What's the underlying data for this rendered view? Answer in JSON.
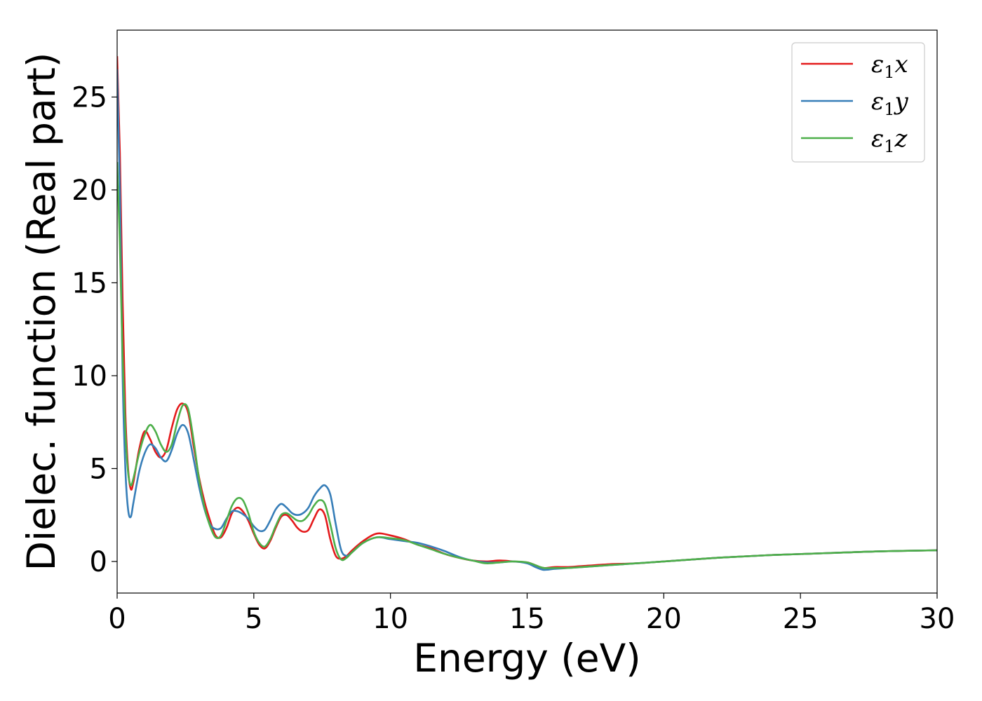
{
  "chart_data": {
    "type": "line",
    "xlabel": "Energy (eV)",
    "ylabel": "Dielec. function (Real part)",
    "xlim": [
      0,
      30
    ],
    "ylim": [
      -1.7,
      28.6
    ],
    "xticks": [
      "0",
      "5",
      "10",
      "15",
      "20",
      "25",
      "30"
    ],
    "yticks": [
      "0",
      "5",
      "10",
      "15",
      "20",
      "25"
    ],
    "grid": false,
    "legend_position": "top-right",
    "series": [
      {
        "name": "ε1x",
        "legend_main": "ε",
        "legend_sub": "1",
        "legend_tail": "x",
        "color": "#e41a1c",
        "x": [
          0,
          0.1,
          0.2,
          0.3,
          0.4,
          0.5,
          0.6,
          0.8,
          1.0,
          1.2,
          1.4,
          1.6,
          1.8,
          2.0,
          2.2,
          2.4,
          2.6,
          2.8,
          3.0,
          3.2,
          3.4,
          3.6,
          3.8,
          4.0,
          4.2,
          4.4,
          4.6,
          4.8,
          5.0,
          5.2,
          5.4,
          5.6,
          5.8,
          6.0,
          6.2,
          6.4,
          6.6,
          6.8,
          7.0,
          7.2,
          7.4,
          7.6,
          7.8,
          8.0,
          8.2,
          8.4,
          8.6,
          9.0,
          9.5,
          10.0,
          10.5,
          11.0,
          11.5,
          12.0,
          12.5,
          13.0,
          13.5,
          14.0,
          14.5,
          15.0,
          15.3,
          15.6,
          16.0,
          16.5,
          17.0,
          18.0,
          19.0,
          20.0,
          22.0,
          24.0,
          26.0,
          28.0,
          30.0
        ],
        "y": [
          27.2,
          22.0,
          14.0,
          8.0,
          5.0,
          3.9,
          4.3,
          6.0,
          7.0,
          6.6,
          5.9,
          5.6,
          6.0,
          7.2,
          8.2,
          8.5,
          8.0,
          6.2,
          4.5,
          3.2,
          2.2,
          1.4,
          1.3,
          1.8,
          2.6,
          2.9,
          2.7,
          2.2,
          1.5,
          0.9,
          0.7,
          1.1,
          1.8,
          2.4,
          2.5,
          2.2,
          1.8,
          1.6,
          1.7,
          2.3,
          2.8,
          2.5,
          1.2,
          0.3,
          0.15,
          0.3,
          0.6,
          1.1,
          1.5,
          1.4,
          1.2,
          0.9,
          0.7,
          0.4,
          0.2,
          0.05,
          0.0,
          0.05,
          0.0,
          -0.05,
          -0.2,
          -0.35,
          -0.3,
          -0.3,
          -0.25,
          -0.15,
          -0.1,
          0.0,
          0.2,
          0.35,
          0.45,
          0.55,
          0.6
        ]
      },
      {
        "name": "ε1y",
        "legend_main": "ε",
        "legend_sub": "1",
        "legend_tail": "y",
        "color": "#377eb8",
        "x": [
          0,
          0.1,
          0.2,
          0.3,
          0.4,
          0.5,
          0.6,
          0.8,
          1.0,
          1.2,
          1.4,
          1.6,
          1.8,
          2.0,
          2.2,
          2.4,
          2.6,
          2.8,
          3.0,
          3.2,
          3.4,
          3.6,
          3.8,
          4.0,
          4.2,
          4.4,
          4.6,
          4.8,
          5.0,
          5.2,
          5.4,
          5.6,
          5.8,
          6.0,
          6.2,
          6.4,
          6.6,
          6.8,
          7.0,
          7.2,
          7.4,
          7.6,
          7.8,
          8.0,
          8.2,
          8.4,
          8.6,
          9.0,
          9.5,
          10.0,
          10.5,
          11.0,
          11.5,
          12.0,
          12.5,
          13.0,
          13.5,
          14.0,
          14.5,
          15.0,
          15.3,
          15.6,
          16.0,
          16.5,
          17.0,
          18.0,
          19.0,
          20.0,
          22.0,
          24.0,
          26.0,
          28.0,
          30.0
        ],
        "y": [
          26.5,
          20.0,
          10.0,
          5.0,
          2.8,
          2.4,
          3.2,
          4.8,
          5.8,
          6.3,
          6.1,
          5.6,
          5.4,
          6.0,
          6.9,
          7.35,
          6.9,
          5.5,
          4.0,
          2.8,
          2.0,
          1.75,
          1.8,
          2.3,
          2.7,
          2.7,
          2.55,
          2.3,
          1.9,
          1.65,
          1.7,
          2.2,
          2.8,
          3.1,
          2.9,
          2.6,
          2.5,
          2.6,
          2.9,
          3.5,
          3.9,
          4.1,
          3.6,
          2.0,
          0.6,
          0.3,
          0.5,
          1.0,
          1.3,
          1.2,
          1.1,
          1.0,
          0.8,
          0.55,
          0.25,
          0.05,
          -0.05,
          -0.05,
          0.0,
          -0.1,
          -0.3,
          -0.45,
          -0.4,
          -0.35,
          -0.3,
          -0.2,
          -0.1,
          0.0,
          0.2,
          0.35,
          0.45,
          0.55,
          0.6
        ]
      },
      {
        "name": "ε1z",
        "legend_main": "ε",
        "legend_sub": "1",
        "legend_tail": "z",
        "color": "#4daf4a",
        "x": [
          0,
          0.1,
          0.2,
          0.3,
          0.4,
          0.5,
          0.6,
          0.8,
          1.0,
          1.2,
          1.4,
          1.6,
          1.8,
          2.0,
          2.2,
          2.4,
          2.6,
          2.8,
          3.0,
          3.2,
          3.4,
          3.6,
          3.8,
          4.0,
          4.2,
          4.4,
          4.6,
          4.8,
          5.0,
          5.2,
          5.4,
          5.6,
          5.8,
          6.0,
          6.2,
          6.4,
          6.6,
          6.8,
          7.0,
          7.2,
          7.4,
          7.6,
          7.8,
          8.0,
          8.2,
          8.4,
          8.6,
          9.0,
          9.5,
          10.0,
          10.5,
          11.0,
          11.5,
          12.0,
          12.5,
          13.0,
          13.5,
          14.0,
          14.5,
          15.0,
          15.3,
          15.6,
          16.0,
          16.5,
          17.0,
          18.0,
          19.0,
          20.0,
          22.0,
          24.0,
          26.0,
          28.0,
          30.0
        ],
        "y": [
          21.5,
          17.0,
          11.0,
          7.0,
          4.8,
          4.1,
          4.5,
          5.8,
          6.8,
          7.35,
          7.0,
          6.3,
          5.9,
          6.3,
          7.5,
          8.4,
          8.2,
          6.5,
          4.4,
          2.9,
          1.9,
          1.3,
          1.4,
          2.2,
          3.0,
          3.4,
          3.3,
          2.6,
          1.6,
          1.0,
          0.8,
          1.2,
          1.9,
          2.5,
          2.6,
          2.4,
          2.2,
          2.2,
          2.5,
          3.0,
          3.3,
          3.1,
          2.0,
          0.7,
          0.1,
          0.2,
          0.5,
          1.0,
          1.3,
          1.25,
          1.15,
          0.9,
          0.65,
          0.4,
          0.2,
          0.05,
          -0.1,
          -0.05,
          0.0,
          -0.05,
          -0.2,
          -0.35,
          -0.35,
          -0.35,
          -0.3,
          -0.2,
          -0.1,
          0.0,
          0.2,
          0.35,
          0.45,
          0.55,
          0.6
        ]
      }
    ]
  }
}
